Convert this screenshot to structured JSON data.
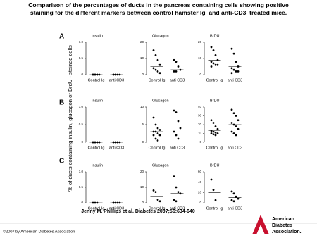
{
  "title": "Comparison of the percentages of ducts in the pancreas containing cells showing positive staining for the different markers between control hamster Ig–and anti-CD3–treated mice.",
  "y_label": "% of ducts containing insulin, glucagon or BrdU - stained cells",
  "panels": [
    "A",
    "B",
    "C"
  ],
  "citation": "Jenny M. Phillips et al. Diabetes 2007;56:634-640",
  "copyright": "©2007 by American Diabetes Association",
  "logo": [
    "American",
    "Diabetes",
    "Association."
  ],
  "chart_data": [
    {
      "type": "strip",
      "title": "Insulin",
      "categories": [
        "Control Ig",
        "anti CD3"
      ],
      "values": [
        [
          0,
          0,
          0,
          0,
          0,
          0,
          0
        ],
        [
          0,
          0,
          0,
          0,
          0,
          0
        ]
      ],
      "means": [
        0,
        0
      ],
      "ylim": [
        0,
        1
      ],
      "yticks": [
        0,
        0.5,
        {
          "value": 1,
          "label": "1.0"
        }
      ]
    },
    {
      "type": "strip",
      "title": "Glucagon",
      "categories": [
        "Control Ig",
        "anti CD3"
      ],
      "values": [
        [
          15,
          12,
          9,
          6,
          4,
          3,
          2,
          1
        ],
        [
          9,
          8,
          5,
          3,
          2,
          2
        ]
      ],
      "means": [
        5,
        3
      ],
      "ylim": [
        0,
        20
      ],
      "yticks": [
        0,
        10,
        20
      ]
    },
    {
      "type": "strip",
      "title": "BrDU",
      "categories": [
        "Control Ig",
        "anti CD3"
      ],
      "values": [
        [
          17,
          15,
          12,
          9,
          8,
          7,
          6,
          6,
          5
        ],
        [
          16,
          13,
          8,
          5,
          4,
          3,
          2,
          2,
          1
        ]
      ],
      "means": [
        9,
        5
      ],
      "ylim": [
        0,
        20
      ],
      "yticks": [
        0,
        10,
        20
      ]
    },
    {
      "type": "strip",
      "title": "Insulin",
      "categories": [
        "Control Ig",
        "anti CD3"
      ],
      "values": [
        [
          0,
          0,
          0,
          0,
          0,
          0,
          0,
          0
        ],
        [
          0,
          0,
          0,
          0,
          0,
          0,
          0
        ]
      ],
      "means": [
        0,
        0
      ],
      "ylim": [
        0,
        1
      ],
      "yticks": [
        0,
        0.5,
        {
          "value": 1,
          "label": "1.0"
        }
      ]
    },
    {
      "type": "strip",
      "title": "Glucagon",
      "categories": [
        "Control Ig",
        "anti CD3"
      ],
      "values": [
        [
          7,
          5,
          4,
          3.5,
          3,
          3,
          2.5,
          2,
          2,
          1,
          0.5
        ],
        [
          9,
          8.5,
          6,
          4,
          3,
          2,
          1
        ]
      ],
      "means": [
        3,
        3.5
      ],
      "ylim": [
        0,
        10
      ],
      "yticks": [
        0,
        5,
        10
      ]
    },
    {
      "type": "strip",
      "title": "BrDU",
      "categories": [
        "Control Ig",
        "anti CD3"
      ],
      "values": [
        [
          25,
          22,
          18,
          15,
          13,
          12,
          11,
          10,
          10,
          9,
          8
        ],
        [
          37,
          33,
          30,
          25,
          22,
          20,
          18,
          15,
          12,
          10,
          8
        ]
      ],
      "means": [
        13,
        20
      ],
      "ylim": [
        0,
        40
      ],
      "yticks": [
        0,
        10,
        20,
        30,
        40
      ]
    },
    {
      "type": "strip",
      "title": "Insulin",
      "categories": [
        "Control Ig",
        "anti CD3"
      ],
      "values": [
        [
          0,
          0,
          0
        ],
        [
          0,
          0,
          0,
          0,
          0
        ]
      ],
      "means": [
        0,
        0
      ],
      "ylim": [
        0,
        1
      ],
      "yticks": [
        0,
        0.5,
        {
          "value": 1,
          "label": "1.0"
        }
      ]
    },
    {
      "type": "strip",
      "title": "Glucagon",
      "categories": [
        "Control Ig",
        "anti CD3"
      ],
      "values": [
        [
          8,
          7,
          2,
          1
        ],
        [
          17,
          10,
          7,
          6,
          2,
          1
        ]
      ],
      "means": [
        4,
        6
      ],
      "ylim": [
        0,
        20
      ],
      "yticks": [
        0,
        10,
        20
      ]
    },
    {
      "type": "strip",
      "title": "BrDU",
      "categories": [
        "Control Ig",
        "anti CD3"
      ],
      "values": [
        [
          45,
          25,
          5
        ],
        [
          22,
          18,
          12,
          8,
          5,
          3
        ]
      ],
      "means": [
        20,
        10
      ],
      "ylim": [
        0,
        60
      ],
      "yticks": [
        0,
        20,
        40,
        60
      ]
    }
  ]
}
